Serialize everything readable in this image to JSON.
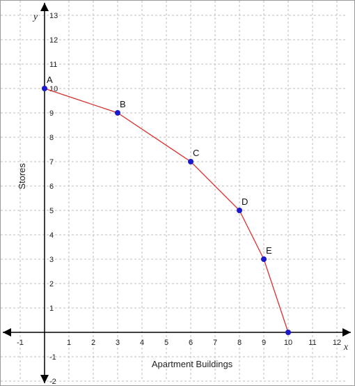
{
  "chart_data": {
    "type": "line",
    "xlabel": "Apartment Buildings",
    "ylabel": "Stores",
    "x_axis_letter": "x",
    "y_axis_letter": "y",
    "xlim": [
      -1.8,
      12.4
    ],
    "ylim": [
      -2,
      13.6
    ],
    "x_ticks": [
      -1,
      1,
      2,
      3,
      4,
      5,
      6,
      7,
      8,
      9,
      10,
      11,
      12
    ],
    "y_ticks": [
      -2,
      -1,
      1,
      2,
      3,
      4,
      5,
      6,
      7,
      8,
      9,
      10,
      11,
      12,
      13
    ],
    "x_tick_labels": [
      "-1",
      "1",
      "2",
      "3",
      "4",
      "5",
      "6",
      "7",
      "8",
      "9",
      "10",
      "11",
      "12"
    ],
    "y_tick_labels": [
      "-2",
      "-1",
      "1",
      "2",
      "3",
      "4",
      "5",
      "6",
      "7",
      "8",
      "9",
      "10",
      "11",
      "12",
      "13"
    ],
    "grid": true,
    "series": [
      {
        "color": "#d93030",
        "points": [
          {
            "label": "A",
            "x": 0,
            "y": 10
          },
          {
            "label": "B",
            "x": 3,
            "y": 9
          },
          {
            "label": "C",
            "x": 6,
            "y": 7
          },
          {
            "label": "D",
            "x": 8,
            "y": 5
          },
          {
            "label": "E",
            "x": 9,
            "y": 3
          },
          {
            "label": "",
            "x": 10,
            "y": 0
          }
        ]
      }
    ],
    "point_color": "#1a1acc"
  }
}
